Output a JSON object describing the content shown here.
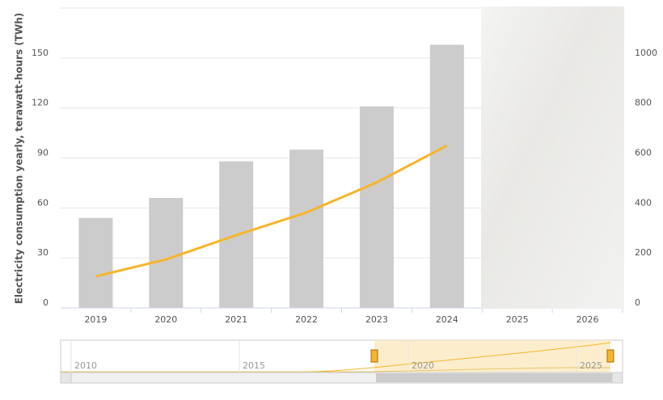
{
  "chart_data": {
    "type": "bar-line",
    "y_axis_label": "Electricity consumption yearly, terawatt-hours (TWh)",
    "categories": [
      "2019",
      "2020",
      "2021",
      "2022",
      "2023",
      "2024",
      "2025",
      "2026"
    ],
    "series": [
      {
        "type": "bar",
        "color": "#cccccc",
        "values": [
          54,
          66,
          88,
          95,
          121,
          158,
          null,
          null
        ]
      },
      {
        "type": "line",
        "color": "#f7b52a",
        "axis": "y2",
        "values": [
          126,
          194,
          291,
          382,
          502,
          650,
          null,
          null
        ]
      }
    ],
    "ylim": [
      0,
      180
    ],
    "yticks": [
      0,
      30,
      60,
      90,
      120,
      150
    ],
    "y2lim": [
      0,
      1200
    ],
    "y2ticks": [
      0,
      200,
      400,
      600,
      800,
      1000
    ],
    "grid": true,
    "navigator": {
      "labels": [
        "2010",
        "2015",
        "2020",
        "2025"
      ]
    }
  }
}
